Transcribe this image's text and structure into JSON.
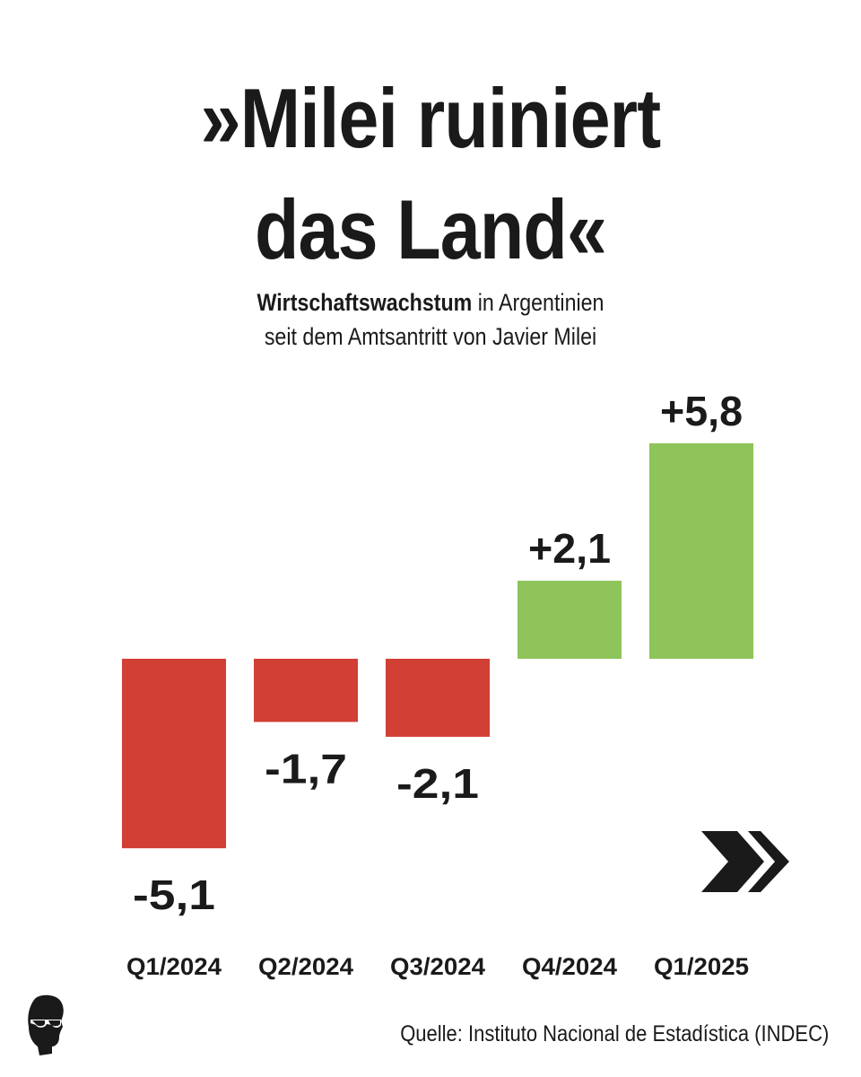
{
  "title": {
    "line1": "»Milei ruiniert",
    "line2": "das Land«"
  },
  "subtitle": {
    "bold": "Wirtschaftswachstum",
    "rest1": " in Argentinien",
    "line2": "seit dem Amtsantritt von Javier Milei"
  },
  "source": "Quelle: Instituto Nacional de Estadística (INDEC)",
  "icons": {
    "logo": "silhouette-head-sunglasses-icon",
    "next": "double-chevron-right-icon"
  },
  "colors": {
    "negative": "#d13f35",
    "positive": "#8ec45a",
    "text": "#1a1a1a",
    "background": "#ffffff"
  },
  "chart_data": {
    "type": "bar",
    "categories": [
      "Q1/2024",
      "Q2/2024",
      "Q3/2024",
      "Q4/2024",
      "Q1/2025"
    ],
    "values": [
      -5.1,
      -1.7,
      -2.1,
      2.1,
      5.8
    ],
    "value_labels": [
      "-5,1",
      "-1,7",
      "-2,1",
      "+2,1",
      "+5,8"
    ],
    "title": "»Milei ruiniert das Land«",
    "xlabel": "",
    "ylabel": "",
    "ylim": [
      -5.1,
      5.8
    ],
    "grid": false,
    "legend": "none"
  }
}
